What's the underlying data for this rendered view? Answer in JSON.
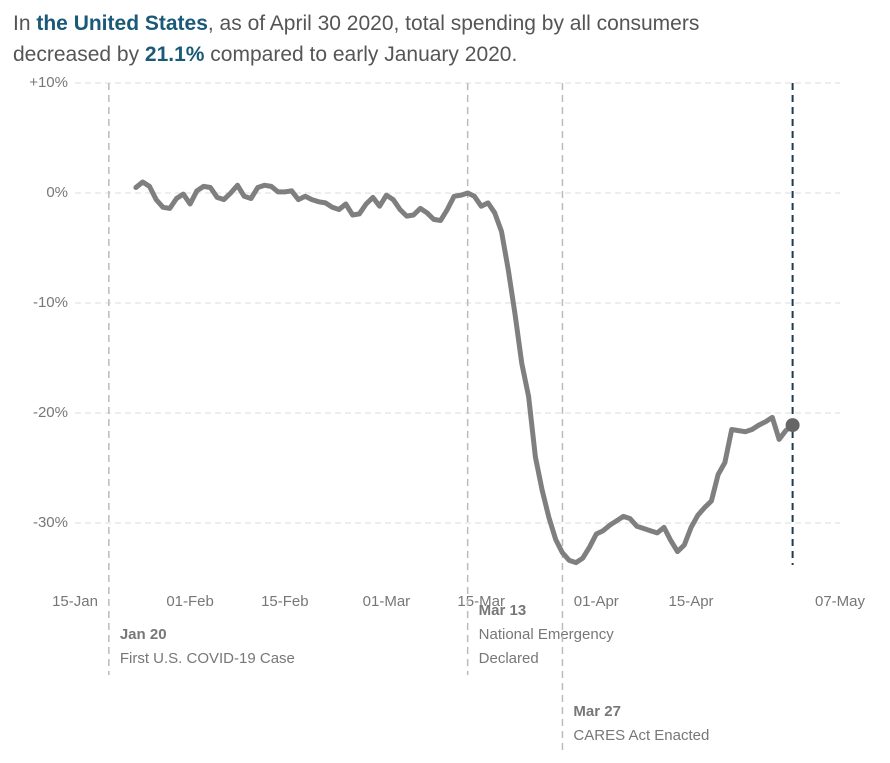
{
  "chart_data": {
    "type": "line",
    "title": [
      "In ",
      "the United States",
      ", as of April 30 2020, total spending by all consumers",
      "decreased by ",
      "21.1%",
      " compared to early January 2020."
    ],
    "title_bold": [
      1,
      4
    ],
    "title_break_before": 3,
    "x": [
      "24-Jan",
      "25-Jan",
      "26-Jan",
      "27-Jan",
      "28-Jan",
      "29-Jan",
      "30-Jan",
      "31-Jan",
      "01-Feb",
      "02-Feb",
      "03-Feb",
      "04-Feb",
      "05-Feb",
      "06-Feb",
      "07-Feb",
      "08-Feb",
      "09-Feb",
      "10-Feb",
      "11-Feb",
      "12-Feb",
      "13-Feb",
      "14-Feb",
      "15-Feb",
      "16-Feb",
      "17-Feb",
      "18-Feb",
      "19-Feb",
      "20-Feb",
      "21-Feb",
      "22-Feb",
      "23-Feb",
      "24-Feb",
      "25-Feb",
      "26-Feb",
      "27-Feb",
      "28-Feb",
      "29-Feb",
      "01-Mar",
      "02-Mar",
      "03-Mar",
      "04-Mar",
      "05-Mar",
      "06-Mar",
      "07-Mar",
      "08-Mar",
      "09-Mar",
      "10-Mar",
      "11-Mar",
      "12-Mar",
      "13-Mar",
      "14-Mar",
      "15-Mar",
      "16-Mar",
      "17-Mar",
      "18-Mar",
      "19-Mar",
      "20-Mar",
      "21-Mar",
      "22-Mar",
      "23-Mar",
      "24-Mar",
      "25-Mar",
      "26-Mar",
      "27-Mar",
      "28-Mar",
      "29-Mar",
      "30-Mar",
      "31-Mar",
      "01-Apr",
      "02-Apr",
      "03-Apr",
      "04-Apr",
      "05-Apr",
      "06-Apr",
      "07-Apr",
      "08-Apr",
      "09-Apr",
      "10-Apr",
      "11-Apr",
      "12-Apr",
      "13-Apr",
      "14-Apr",
      "15-Apr",
      "16-Apr",
      "17-Apr",
      "18-Apr",
      "19-Apr",
      "20-Apr",
      "21-Apr",
      "22-Apr",
      "23-Apr",
      "24-Apr",
      "25-Apr",
      "26-Apr",
      "27-Apr",
      "28-Apr",
      "29-Apr",
      "30-Apr"
    ],
    "series": [
      {
        "name": "Total spending",
        "color": "#7f7f7f",
        "values": [
          0.5,
          1.0,
          0.6,
          -0.6,
          -1.3,
          -1.4,
          -0.5,
          -0.1,
          -1.0,
          0.2,
          0.6,
          0.5,
          -0.4,
          -0.6,
          0.0,
          0.7,
          -0.3,
          -0.5,
          0.5,
          0.7,
          0.6,
          0.1,
          0.1,
          0.2,
          -0.6,
          -0.3,
          -0.6,
          -0.8,
          -0.9,
          -1.3,
          -1.5,
          -1.0,
          -2.0,
          -1.9,
          -1.0,
          -0.4,
          -1.2,
          -0.2,
          -0.6,
          -1.5,
          -2.1,
          -2.0,
          -1.4,
          -1.8,
          -2.4,
          -2.5,
          -1.5,
          -0.3,
          -0.2,
          0.0,
          -0.3,
          -1.2,
          -0.9,
          -1.8,
          -3.5,
          -7,
          -11,
          -15.5,
          -18.5,
          -24,
          -27,
          -29.5,
          -31.5,
          -32.7,
          -33.4,
          -33.6,
          -33.2,
          -32.2,
          -31,
          -30.7,
          -30.2,
          -29.8,
          -29.4,
          -29.6,
          -30.3,
          -30.5,
          -30.7,
          -30.9,
          -30.4,
          -31.6,
          -32.6,
          -32,
          -30.4,
          -29.3,
          -28.6,
          -28,
          -25.6,
          -24.5,
          -21.5,
          -21.6,
          -21.7,
          -21.5,
          -21.1,
          -20.8,
          -20.4,
          -22.4,
          -21.6,
          -21.1
        ]
      }
    ],
    "xlim": [
      "15-Jan",
      "07-May"
    ],
    "xticks": [
      "15-Jan",
      "01-Feb",
      "15-Feb",
      "01-Mar",
      "15-Mar",
      "01-Apr",
      "15-Apr",
      "07-May"
    ],
    "ylim": [
      -34,
      10
    ],
    "yticks": [
      {
        "value": 10,
        "label": "+10%"
      },
      {
        "value": 0,
        "label": "0%"
      },
      {
        "value": -10,
        "label": "-10%"
      },
      {
        "value": -20,
        "label": "-20%"
      },
      {
        "value": -30,
        "label": "-30%"
      }
    ],
    "grid": true,
    "annotations": [
      {
        "label": "Jan 20",
        "lines": [
          "First U.S. COVID-19 Case"
        ]
      },
      {
        "label": "Mar 13",
        "lines": [
          "National Emergency",
          "Declared"
        ]
      },
      {
        "label": "Mar 27",
        "lines": [
          "CARES Act Enacted"
        ]
      }
    ],
    "end_marker_color": "#1d3c4f"
  }
}
